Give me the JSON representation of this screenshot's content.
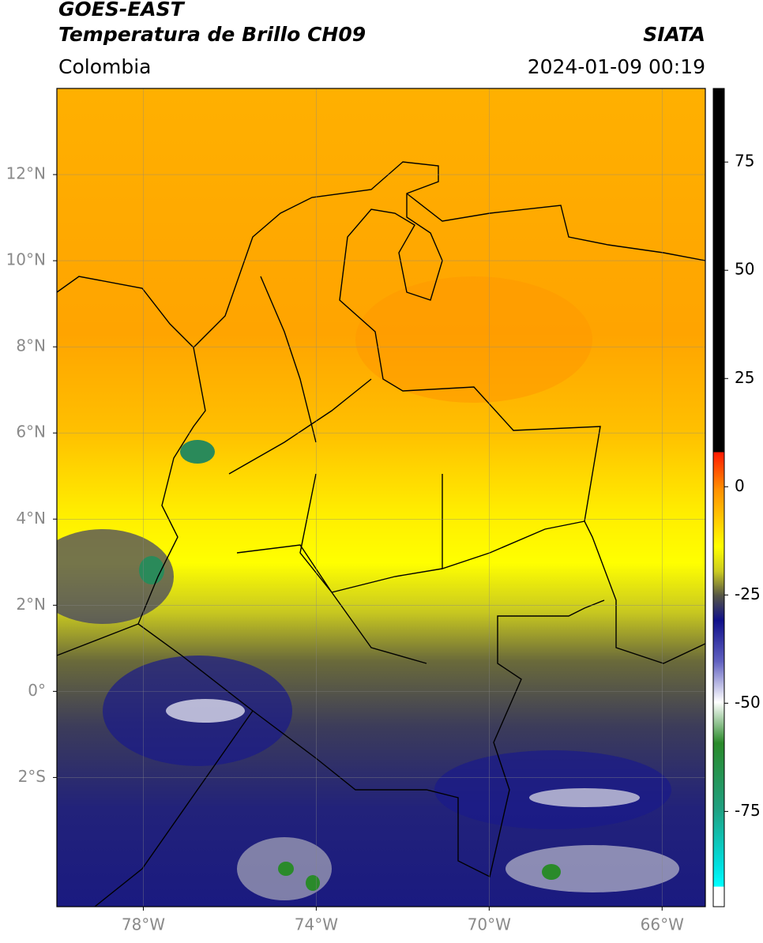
{
  "header": {
    "title_line1": "GOES-EAST",
    "title_line2": "Temperatura de Brillo CH09",
    "source": "SIATA",
    "region": "Colombia",
    "timestamp": "2024-01-09 00:19"
  },
  "map": {
    "xlim": [
      -80,
      -65
    ],
    "ylim": [
      -5,
      14
    ],
    "grid": true,
    "xticks": [
      {
        "value": -78,
        "label": "78°W"
      },
      {
        "value": -74,
        "label": "74°W"
      },
      {
        "value": -70,
        "label": "70°W"
      },
      {
        "value": -66,
        "label": "66°W"
      }
    ],
    "yticks": [
      {
        "value": 12,
        "label": "12°N"
      },
      {
        "value": 10,
        "label": "10°N"
      },
      {
        "value": 8,
        "label": "8°N"
      },
      {
        "value": 6,
        "label": "6°N"
      },
      {
        "value": 4,
        "label": "4°N"
      },
      {
        "value": 2,
        "label": "2°N"
      },
      {
        "value": 0,
        "label": "0°"
      },
      {
        "value": -2,
        "label": "2°S"
      }
    ]
  },
  "colorbar": {
    "clim": [
      -97,
      92
    ],
    "ticks": [
      75,
      50,
      25,
      0,
      -25,
      -50,
      -75
    ]
  }
}
